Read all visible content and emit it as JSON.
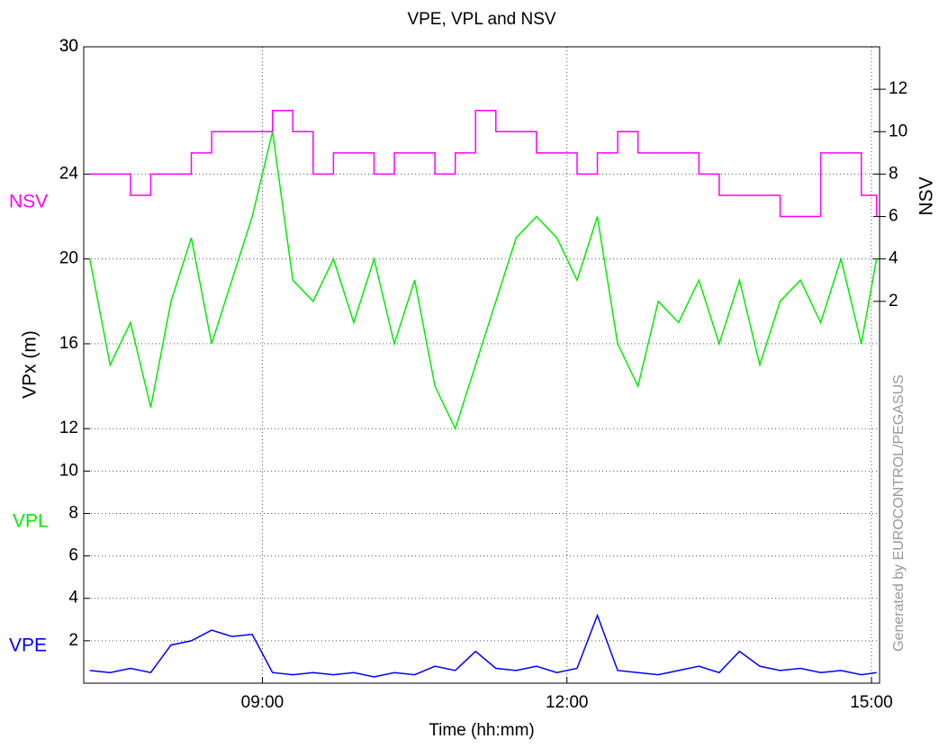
{
  "chart_data": {
    "type": "line",
    "title": "VPE, VPL and NSV",
    "x_label": "Time (hh:mm)",
    "y_label": "VPx  (m)",
    "y2_label": "NSV",
    "annotations": [
      "NSV",
      "VPL",
      "VPE"
    ],
    "watermark": "Generated by EUROCONTROL/PEGASUS",
    "x": [
      7.3,
      7.5,
      7.7,
      7.9,
      8.1,
      8.3,
      8.5,
      8.7,
      8.9,
      9.1,
      9.3,
      9.5,
      9.7,
      9.9,
      10.1,
      10.3,
      10.5,
      10.7,
      10.9,
      11.1,
      11.3,
      11.5,
      11.7,
      11.9,
      12.1,
      12.3,
      12.5,
      12.7,
      12.9,
      13.1,
      13.3,
      13.5,
      13.7,
      13.9,
      14.1,
      14.3,
      14.5,
      14.7,
      14.9,
      15.05
    ],
    "series": [
      {
        "name": "VPL",
        "color": "#00ee00",
        "values": [
          20,
          15,
          17,
          13,
          18,
          21,
          16,
          19,
          22,
          26,
          19,
          18,
          20,
          17,
          20,
          16,
          19,
          14,
          12,
          15,
          18,
          21,
          22,
          21,
          19,
          22,
          16,
          14,
          18,
          17,
          19,
          16,
          19,
          15,
          18,
          19,
          17,
          20,
          16,
          20
        ]
      },
      {
        "name": "NSV",
        "color": "#ff00ff",
        "axis": "y2",
        "step": true,
        "values": [
          8,
          8,
          7,
          8,
          8,
          9,
          10,
          10,
          10,
          11,
          10,
          8,
          9,
          9,
          8,
          9,
          9,
          8,
          9,
          11,
          10,
          10,
          9,
          9,
          8,
          9,
          10,
          9,
          9,
          9,
          8,
          7,
          7,
          7,
          6,
          6,
          9,
          9,
          7,
          6
        ]
      },
      {
        "name": "VPE",
        "color": "#0000ff",
        "values": [
          0.6,
          0.5,
          0.7,
          0.5,
          1.8,
          2.0,
          2.5,
          2.2,
          2.3,
          0.5,
          0.4,
          0.5,
          0.4,
          0.5,
          0.3,
          0.5,
          0.4,
          0.8,
          0.6,
          1.5,
          0.7,
          0.6,
          0.8,
          0.5,
          0.7,
          3.2,
          0.6,
          0.5,
          0.4,
          0.6,
          0.8,
          0.5,
          1.5,
          0.8,
          0.6,
          0.7,
          0.5,
          0.6,
          0.4,
          0.5
        ]
      }
    ],
    "xlim": [
      7.24,
      15.08
    ],
    "xticks": [
      {
        "value": 9,
        "label": "09:00"
      },
      {
        "value": 12,
        "label": "12:00"
      },
      {
        "value": 15,
        "label": "15:00"
      }
    ],
    "ylim": [
      0,
      30
    ],
    "yticks": [
      2,
      4,
      6,
      8,
      10,
      12,
      16,
      20,
      24,
      30
    ],
    "y2lim": [
      -16,
      14
    ],
    "y2ticks": [
      2,
      4,
      6,
      8,
      10,
      12
    ],
    "grid": true
  }
}
